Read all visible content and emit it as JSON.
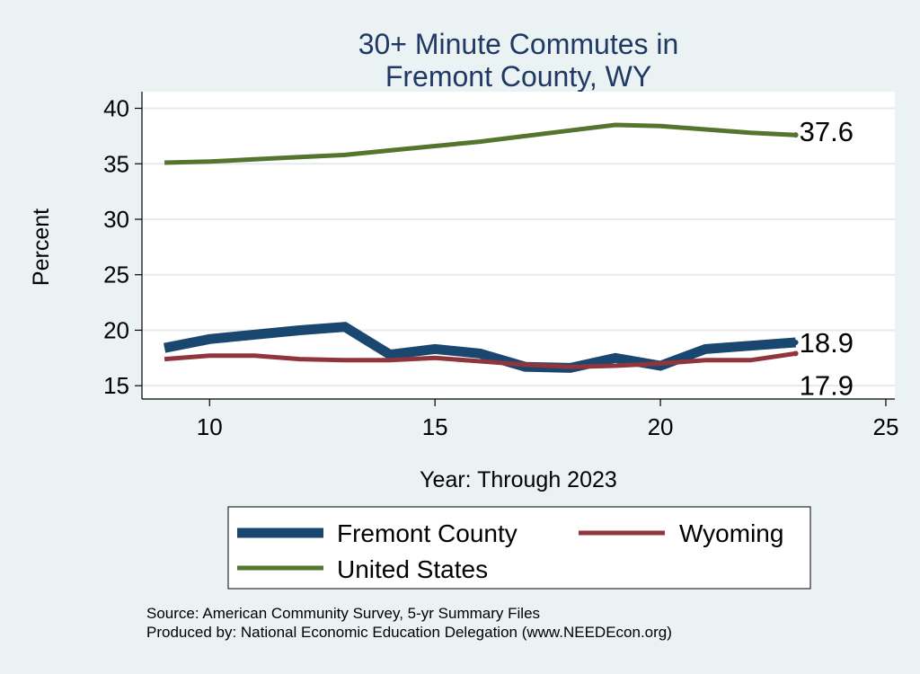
{
  "chart_data": {
    "type": "line",
    "title_lines": [
      "30+ Minute Commutes in",
      "Fremont County, WY"
    ],
    "xlabel": "Year: Through 2023",
    "ylabel": "Percent",
    "xlim": [
      8.5,
      25.2
    ],
    "ylim": [
      13.8,
      41.5
    ],
    "xticks": [
      10,
      15,
      20,
      25
    ],
    "yticks": [
      15,
      20,
      25,
      30,
      35,
      40
    ],
    "grid": true,
    "legend_position": "bottom",
    "series": [
      {
        "name": "Fremont County",
        "color": "#1a476f",
        "width": "thick",
        "x": [
          9,
          10,
          11,
          12,
          13,
          14,
          15,
          16,
          17,
          18,
          19,
          20,
          21,
          22,
          23
        ],
        "y": [
          18.4,
          19.2,
          19.6,
          20.0,
          20.3,
          17.8,
          18.3,
          17.9,
          16.7,
          16.6,
          17.5,
          16.8,
          18.3,
          18.6,
          18.9
        ],
        "end_label": "18.9"
      },
      {
        "name": "Wyoming",
        "color": "#90353b",
        "width": "medium",
        "x": [
          9,
          10,
          11,
          12,
          13,
          14,
          15,
          16,
          17,
          18,
          19,
          20,
          21,
          22,
          23
        ],
        "y": [
          17.4,
          17.7,
          17.7,
          17.4,
          17.3,
          17.3,
          17.5,
          17.2,
          16.9,
          16.7,
          16.8,
          17.0,
          17.3,
          17.3,
          17.9
        ],
        "end_label": "17.9"
      },
      {
        "name": "United States",
        "color": "#55752f",
        "width": "medium",
        "x": [
          9,
          10,
          11,
          12,
          13,
          14,
          15,
          16,
          17,
          18,
          19,
          20,
          21,
          22,
          23
        ],
        "y": [
          35.1,
          35.2,
          35.4,
          35.6,
          35.8,
          36.2,
          36.6,
          37.0,
          37.5,
          38.0,
          38.5,
          38.4,
          38.1,
          37.8,
          37.6
        ],
        "end_label": "37.6"
      }
    ],
    "source_lines": [
      "Source: American Community Survey, 5-yr Summary Files",
      "Produced by: National Economic Education Delegation (www.NEEDEcon.org)"
    ]
  }
}
